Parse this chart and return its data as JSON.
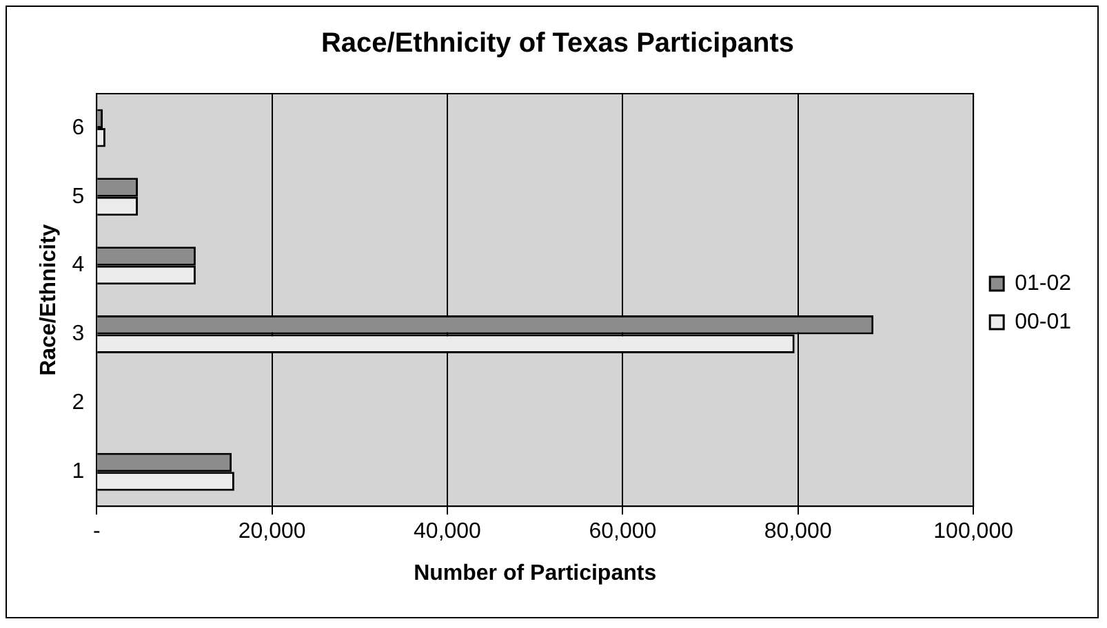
{
  "chart_data": {
    "type": "bar",
    "orientation": "horizontal",
    "title": "Race/Ethnicity of Texas Participants",
    "xlabel": "Number of Participants",
    "ylabel": "Race/Ethnicity",
    "categories": [
      "6",
      "5",
      "4",
      "3",
      "2",
      "1"
    ],
    "series": [
      {
        "name": "01-02",
        "color": "#8c8c8c",
        "values": [
          700,
          4700,
          11300,
          88600,
          0,
          15400
        ]
      },
      {
        "name": "00-01",
        "color": "#ececec",
        "values": [
          1000,
          4700,
          11300,
          79600,
          0,
          15700
        ]
      }
    ],
    "xlim": [
      0,
      100000
    ],
    "xticks": [
      {
        "value": 0,
        "label": "-"
      },
      {
        "value": 20000,
        "label": "20,000"
      },
      {
        "value": 40000,
        "label": "40,000"
      },
      {
        "value": 60000,
        "label": "60,000"
      },
      {
        "value": 80000,
        "label": "80,000"
      },
      {
        "value": 100000,
        "label": "100,000"
      }
    ],
    "grid": "x",
    "legend": "right"
  }
}
